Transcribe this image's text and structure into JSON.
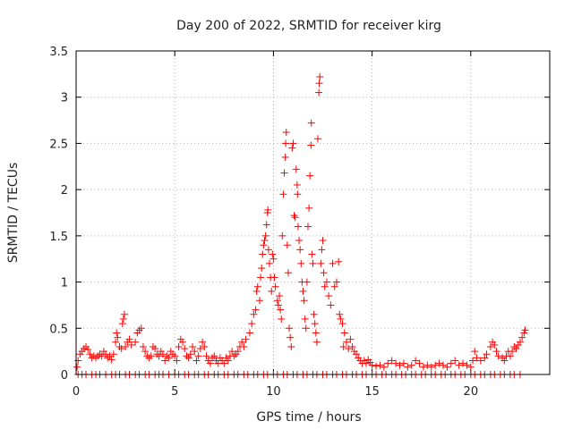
{
  "chart_data": {
    "type": "scatter",
    "title": "Day 200 of 2022, SRMTID for receiver kirg",
    "xlabel": "GPS time / hours",
    "ylabel": "SRMTID / TECUs",
    "xlim": [
      0,
      24
    ],
    "ylim": [
      0,
      3.5
    ],
    "x_ticks": [
      0,
      5,
      10,
      15,
      20
    ],
    "x_tick_labels": [
      "0",
      "5",
      "10",
      "15",
      "20"
    ],
    "y_ticks": [
      0,
      0.5,
      1,
      1.5,
      2,
      2.5,
      3,
      3.5
    ],
    "y_tick_labels": [
      "0",
      "0.5",
      "1",
      "1.5",
      "2",
      "2.5",
      "3",
      "3.5"
    ],
    "grid": true,
    "marker": "+",
    "color": "#ff0000",
    "series": [
      {
        "name": "SRMTID",
        "points": [
          [
            0.05,
            0.08
          ],
          [
            0.1,
            0.15
          ],
          [
            0.2,
            0.22
          ],
          [
            0.3,
            0.25
          ],
          [
            0.4,
            0.28
          ],
          [
            0.5,
            0.3
          ],
          [
            0.6,
            0.27
          ],
          [
            0.7,
            0.22
          ],
          [
            0.8,
            0.18
          ],
          [
            0.9,
            0.2
          ],
          [
            1.0,
            0.18
          ],
          [
            1.1,
            0.2
          ],
          [
            1.2,
            0.22
          ],
          [
            1.3,
            0.2
          ],
          [
            1.4,
            0.25
          ],
          [
            1.5,
            0.22
          ],
          [
            1.6,
            0.18
          ],
          [
            1.7,
            0.2
          ],
          [
            1.8,
            0.16
          ],
          [
            1.9,
            0.22
          ],
          [
            2.0,
            0.35
          ],
          [
            2.05,
            0.45
          ],
          [
            2.1,
            0.4
          ],
          [
            2.2,
            0.3
          ],
          [
            2.3,
            0.28
          ],
          [
            2.35,
            0.55
          ],
          [
            2.4,
            0.6
          ],
          [
            2.45,
            0.65
          ],
          [
            2.5,
            0.3
          ],
          [
            2.6,
            0.35
          ],
          [
            2.7,
            0.38
          ],
          [
            2.8,
            0.32
          ],
          [
            3.0,
            0.35
          ],
          [
            3.1,
            0.45
          ],
          [
            3.2,
            0.48
          ],
          [
            3.3,
            0.5
          ],
          [
            3.4,
            0.3
          ],
          [
            3.5,
            0.25
          ],
          [
            3.6,
            0.2
          ],
          [
            3.7,
            0.18
          ],
          [
            3.8,
            0.2
          ],
          [
            3.9,
            0.3
          ],
          [
            4.0,
            0.28
          ],
          [
            4.1,
            0.22
          ],
          [
            4.2,
            0.2
          ],
          [
            4.3,
            0.25
          ],
          [
            4.4,
            0.22
          ],
          [
            4.5,
            0.15
          ],
          [
            4.6,
            0.2
          ],
          [
            4.7,
            0.18
          ],
          [
            4.8,
            0.25
          ],
          [
            4.9,
            0.22
          ],
          [
            5.0,
            0.2
          ],
          [
            5.1,
            0.15
          ],
          [
            5.2,
            0.3
          ],
          [
            5.3,
            0.38
          ],
          [
            5.4,
            0.35
          ],
          [
            5.5,
            0.28
          ],
          [
            5.6,
            0.2
          ],
          [
            5.7,
            0.18
          ],
          [
            5.8,
            0.22
          ],
          [
            5.9,
            0.3
          ],
          [
            6.0,
            0.25
          ],
          [
            6.1,
            0.15
          ],
          [
            6.2,
            0.2
          ],
          [
            6.3,
            0.28
          ],
          [
            6.4,
            0.35
          ],
          [
            6.5,
            0.3
          ],
          [
            6.6,
            0.2
          ],
          [
            6.7,
            0.15
          ],
          [
            6.8,
            0.12
          ],
          [
            6.9,
            0.18
          ],
          [
            7.0,
            0.2
          ],
          [
            7.1,
            0.15
          ],
          [
            7.2,
            0.12
          ],
          [
            7.3,
            0.18
          ],
          [
            7.4,
            0.15
          ],
          [
            7.5,
            0.12
          ],
          [
            7.6,
            0.18
          ],
          [
            7.7,
            0.15
          ],
          [
            7.8,
            0.2
          ],
          [
            7.9,
            0.25
          ],
          [
            8.0,
            0.2
          ],
          [
            8.1,
            0.22
          ],
          [
            8.2,
            0.25
          ],
          [
            8.3,
            0.3
          ],
          [
            8.4,
            0.35
          ],
          [
            8.5,
            0.3
          ],
          [
            8.6,
            0.38
          ],
          [
            8.8,
            0.45
          ],
          [
            8.9,
            0.55
          ],
          [
            9.0,
            0.65
          ],
          [
            9.1,
            0.7
          ],
          [
            9.15,
            0.9
          ],
          [
            9.2,
            0.95
          ],
          [
            9.3,
            0.8
          ],
          [
            9.35,
            1.05
          ],
          [
            9.4,
            1.15
          ],
          [
            9.45,
            1.3
          ],
          [
            9.5,
            1.4
          ],
          [
            9.55,
            1.45
          ],
          [
            9.6,
            1.5
          ],
          [
            9.65,
            1.62
          ],
          [
            9.7,
            1.75
          ],
          [
            9.72,
            1.78
          ],
          [
            9.75,
            1.35
          ],
          [
            9.8,
            1.2
          ],
          [
            9.85,
            1.05
          ],
          [
            9.9,
            0.9
          ],
          [
            9.95,
            1.3
          ],
          [
            10.0,
            1.25
          ],
          [
            10.05,
            1.05
          ],
          [
            10.1,
            0.95
          ],
          [
            10.2,
            0.8
          ],
          [
            10.25,
            0.75
          ],
          [
            10.3,
            0.85
          ],
          [
            10.35,
            0.7
          ],
          [
            10.4,
            0.6
          ],
          [
            10.45,
            1.5
          ],
          [
            10.5,
            1.95
          ],
          [
            10.55,
            2.18
          ],
          [
            10.6,
            2.35
          ],
          [
            10.62,
            2.5
          ],
          [
            10.65,
            2.62
          ],
          [
            10.7,
            1.4
          ],
          [
            10.75,
            1.1
          ],
          [
            10.8,
            0.5
          ],
          [
            10.85,
            0.4
          ],
          [
            10.9,
            0.3
          ],
          [
            10.95,
            2.45
          ],
          [
            11.0,
            2.5
          ],
          [
            11.05,
            1.72
          ],
          [
            11.1,
            1.7
          ],
          [
            11.15,
            2.22
          ],
          [
            11.2,
            2.05
          ],
          [
            11.22,
            1.95
          ],
          [
            11.25,
            1.6
          ],
          [
            11.3,
            1.45
          ],
          [
            11.35,
            1.35
          ],
          [
            11.4,
            1.2
          ],
          [
            11.45,
            1.0
          ],
          [
            11.5,
            0.9
          ],
          [
            11.55,
            0.8
          ],
          [
            11.6,
            0.6
          ],
          [
            11.65,
            0.5
          ],
          [
            11.7,
            1.0
          ],
          [
            11.75,
            1.6
          ],
          [
            11.8,
            1.8
          ],
          [
            11.85,
            2.15
          ],
          [
            11.9,
            2.48
          ],
          [
            11.92,
            2.72
          ],
          [
            11.95,
            1.3
          ],
          [
            12.0,
            1.2
          ],
          [
            12.05,
            0.65
          ],
          [
            12.1,
            0.55
          ],
          [
            12.15,
            0.45
          ],
          [
            12.2,
            0.35
          ],
          [
            12.25,
            2.55
          ],
          [
            12.3,
            3.05
          ],
          [
            12.32,
            3.15
          ],
          [
            12.35,
            3.22
          ],
          [
            12.4,
            1.2
          ],
          [
            12.45,
            1.35
          ],
          [
            12.5,
            1.45
          ],
          [
            12.55,
            1.1
          ],
          [
            12.6,
            0.95
          ],
          [
            12.7,
            1.0
          ],
          [
            12.8,
            0.85
          ],
          [
            12.9,
            0.75
          ],
          [
            13.0,
            1.2
          ],
          [
            13.1,
            0.95
          ],
          [
            13.2,
            1.0
          ],
          [
            13.3,
            1.22
          ],
          [
            13.35,
            0.65
          ],
          [
            13.4,
            0.6
          ],
          [
            13.5,
            0.55
          ],
          [
            13.55,
            0.3
          ],
          [
            13.6,
            0.45
          ],
          [
            13.7,
            0.35
          ],
          [
            13.8,
            0.28
          ],
          [
            13.9,
            0.38
          ],
          [
            14.0,
            0.3
          ],
          [
            14.1,
            0.25
          ],
          [
            14.2,
            0.22
          ],
          [
            14.3,
            0.18
          ],
          [
            14.4,
            0.15
          ],
          [
            14.5,
            0.12
          ],
          [
            14.6,
            0.15
          ],
          [
            14.7,
            0.12
          ],
          [
            14.8,
            0.16
          ],
          [
            14.9,
            0.13
          ],
          [
            15.0,
            0.1
          ],
          [
            15.2,
            0.09
          ],
          [
            15.4,
            0.1
          ],
          [
            15.6,
            0.08
          ],
          [
            15.8,
            0.12
          ],
          [
            16.0,
            0.15
          ],
          [
            16.2,
            0.12
          ],
          [
            16.4,
            0.1
          ],
          [
            16.6,
            0.12
          ],
          [
            16.8,
            0.08
          ],
          [
            17.0,
            0.1
          ],
          [
            17.2,
            0.15
          ],
          [
            17.4,
            0.12
          ],
          [
            17.6,
            0.08
          ],
          [
            17.8,
            0.1
          ],
          [
            18.0,
            0.08
          ],
          [
            18.2,
            0.1
          ],
          [
            18.4,
            0.12
          ],
          [
            18.6,
            0.1
          ],
          [
            18.8,
            0.08
          ],
          [
            19.0,
            0.12
          ],
          [
            19.2,
            0.15
          ],
          [
            19.4,
            0.1
          ],
          [
            19.6,
            0.12
          ],
          [
            19.8,
            0.1
          ],
          [
            20.0,
            0.08
          ],
          [
            20.1,
            0.15
          ],
          [
            20.2,
            0.25
          ],
          [
            20.3,
            0.18
          ],
          [
            20.5,
            0.15
          ],
          [
            20.7,
            0.18
          ],
          [
            20.8,
            0.22
          ],
          [
            21.0,
            0.3
          ],
          [
            21.1,
            0.35
          ],
          [
            21.2,
            0.32
          ],
          [
            21.3,
            0.25
          ],
          [
            21.4,
            0.2
          ],
          [
            21.6,
            0.18
          ],
          [
            21.7,
            0.15
          ],
          [
            21.8,
            0.2
          ],
          [
            21.9,
            0.25
          ],
          [
            22.0,
            0.2
          ],
          [
            22.1,
            0.25
          ],
          [
            22.2,
            0.3
          ],
          [
            22.3,
            0.28
          ],
          [
            22.4,
            0.32
          ],
          [
            22.5,
            0.35
          ],
          [
            22.6,
            0.4
          ],
          [
            22.7,
            0.45
          ],
          [
            22.75,
            0.48
          ]
        ],
        "zero_points_x": [
          0.1,
          0.3,
          0.5,
          0.8,
          1.0,
          1.2,
          1.5,
          1.8,
          2.0,
          2.2,
          2.5,
          2.7,
          3.0,
          3.2,
          3.5,
          3.7,
          4.0,
          4.2,
          4.4,
          4.7,
          5.0,
          5.2,
          5.5,
          5.7,
          6.0,
          6.2,
          6.5,
          6.7,
          7.0,
          7.2,
          7.5,
          7.7,
          8.0,
          8.2,
          8.5,
          8.7,
          9.0,
          9.2,
          9.5,
          9.7,
          10.0,
          10.2,
          10.5,
          10.7,
          11.0,
          11.2,
          11.5,
          11.7,
          12.0,
          12.2,
          12.5,
          12.7,
          13.0,
          13.2,
          13.5,
          13.7,
          14.0,
          14.2,
          14.5,
          14.7,
          15.0,
          15.2,
          15.5,
          15.7,
          16.0,
          16.2,
          16.5,
          16.7,
          17.0,
          17.2,
          17.5,
          17.7,
          18.0,
          18.2,
          18.5,
          18.7,
          19.0,
          19.2,
          19.5,
          19.7,
          20.0,
          20.2,
          20.5,
          20.7,
          21.0,
          21.2,
          21.5,
          21.7,
          22.0,
          22.2,
          22.5
        ]
      }
    ]
  }
}
